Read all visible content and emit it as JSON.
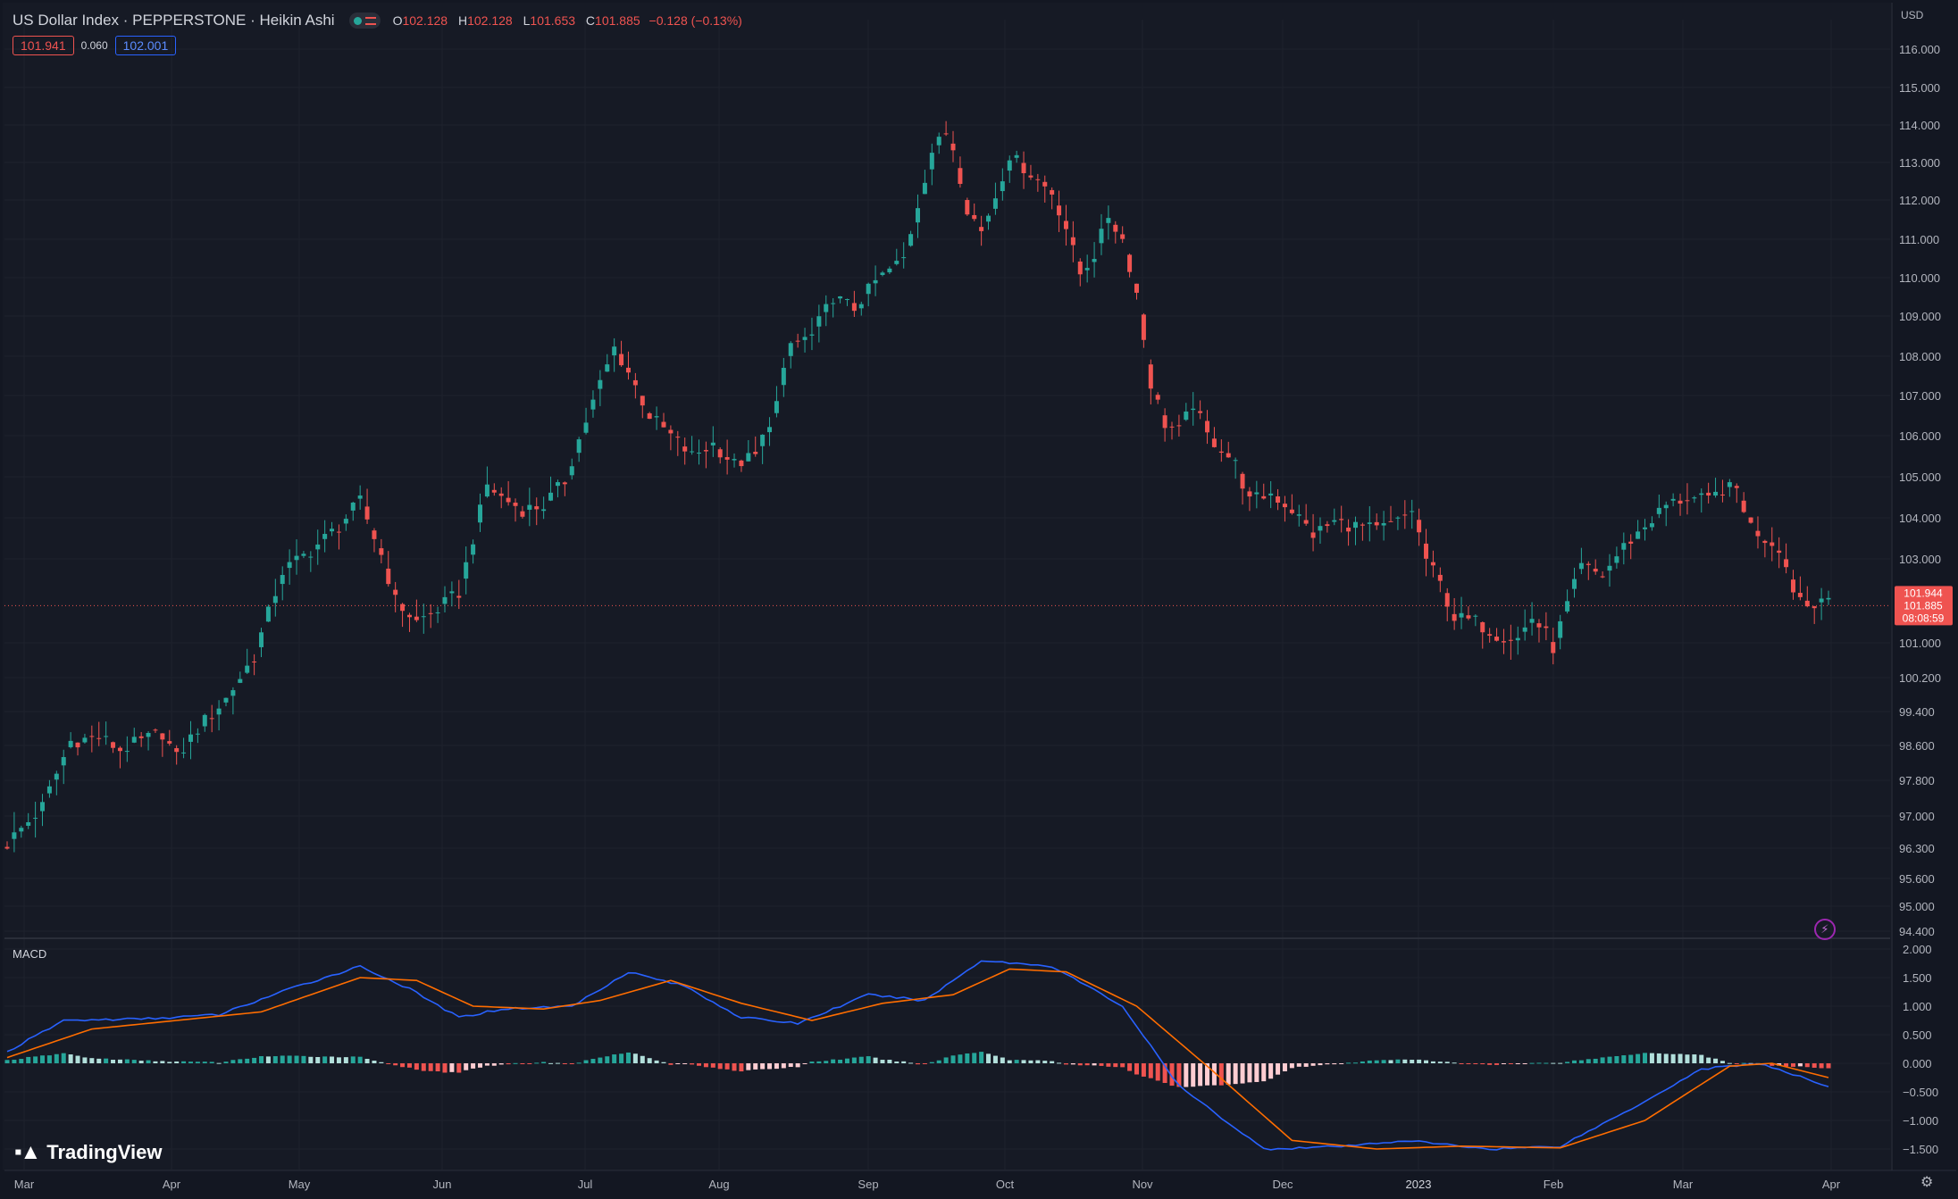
{
  "header": {
    "title": "US Dollar Index · PEPPERSTONE · Heikin Ashi",
    "ohlc": [
      {
        "k": "O",
        "v": "102.128"
      },
      {
        "k": "H",
        "v": "102.128"
      },
      {
        "k": "L",
        "v": "101.653"
      },
      {
        "k": "C",
        "v": "101.885"
      }
    ],
    "change": "−0.128 (−0.13%)",
    "bid": "101.941",
    "spread": "0.060",
    "ask": "102.001"
  },
  "currency": "USD",
  "macd_label": "MACD",
  "brand": "TradingView",
  "last_price_labels": [
    "101.944",
    "101.885",
    "08:08:59"
  ],
  "colors": {
    "background": "#131722",
    "up": "#26a69a",
    "down": "#ef5350",
    "macd_line": "#2962ff",
    "signal_line": "#ff6d00",
    "text": "#b2b5be"
  },
  "chart_data": [
    {
      "type": "candlestick",
      "style": "heikin-ashi",
      "ylim": [
        94.0,
        116.5
      ],
      "y_ticks": [
        "116.000",
        "115.000",
        "114.000",
        "113.000",
        "112.000",
        "111.000",
        "110.000",
        "109.000",
        "108.000",
        "107.000",
        "106.000",
        "105.000",
        "104.000",
        "103.000",
        "101.000",
        "100.200",
        "99.400",
        "98.600",
        "97.800",
        "97.000",
        "96.300",
        "95.600",
        "95.000",
        "94.400"
      ],
      "y_tick_values": [
        116,
        115,
        114,
        113,
        112,
        111,
        110,
        109,
        108,
        107,
        106,
        105,
        104,
        103,
        101,
        100.2,
        99.4,
        98.6,
        97.8,
        97,
        96.3,
        95.6,
        95,
        94.4
      ],
      "x_ticks": [
        "Mar",
        "Apr",
        "May",
        "Jun",
        "Jul",
        "Aug",
        "Sep",
        "Oct",
        "Nov",
        "Dec",
        "2023",
        "Feb",
        "Mar",
        "Apr"
      ],
      "last_price": 101.885,
      "close_path": [
        [
          0,
          96.4
        ],
        [
          5,
          97.2
        ],
        [
          9,
          98.7
        ],
        [
          13,
          98.8
        ],
        [
          16,
          98.5
        ],
        [
          19,
          98.7
        ],
        [
          22,
          98.9
        ],
        [
          24,
          98.3
        ],
        [
          27,
          99.0
        ],
        [
          31,
          99.7
        ],
        [
          35,
          100.7
        ],
        [
          39,
          102.7
        ],
        [
          43,
          103.2
        ],
        [
          47,
          103.8
        ],
        [
          50,
          104.4
        ],
        [
          53,
          103.1
        ],
        [
          55,
          102.0
        ],
        [
          58,
          101.5
        ],
        [
          61,
          101.8
        ],
        [
          64,
          102.2
        ],
        [
          66,
          103.5
        ],
        [
          68,
          104.8
        ],
        [
          70,
          104.5
        ],
        [
          73,
          104.2
        ],
        [
          76,
          104.3
        ],
        [
          79,
          104.9
        ],
        [
          81,
          105.9
        ],
        [
          84,
          107.3
        ],
        [
          86,
          108.2
        ],
        [
          88,
          107.6
        ],
        [
          91,
          106.5
        ],
        [
          94,
          106.0
        ],
        [
          97,
          105.5
        ],
        [
          100,
          105.8
        ],
        [
          103,
          105.3
        ],
        [
          106,
          105.5
        ],
        [
          109,
          106.8
        ],
        [
          111,
          108.3
        ],
        [
          114,
          108.5
        ],
        [
          117,
          109.5
        ],
        [
          120,
          109.2
        ],
        [
          123,
          109.9
        ],
        [
          127,
          110.5
        ],
        [
          131,
          113.3
        ],
        [
          133,
          113.8
        ],
        [
          134,
          113.4
        ],
        [
          136,
          111.8
        ],
        [
          138,
          111.2
        ],
        [
          140,
          112.1
        ],
        [
          142,
          113.2
        ],
        [
          145,
          112.7
        ],
        [
          148,
          112.2
        ],
        [
          150,
          111.3
        ],
        [
          152,
          110.1
        ],
        [
          154,
          110.6
        ],
        [
          156,
          111.6
        ],
        [
          158,
          111.0
        ],
        [
          160,
          109.6
        ],
        [
          162,
          107.3
        ],
        [
          164,
          106.3
        ],
        [
          166,
          106.1
        ],
        [
          168,
          106.8
        ],
        [
          170,
          106.0
        ],
        [
          172,
          105.7
        ],
        [
          174,
          105.3
        ],
        [
          176,
          104.4
        ],
        [
          179,
          104.6
        ],
        [
          182,
          104.2
        ],
        [
          185,
          103.6
        ],
        [
          188,
          103.9
        ],
        [
          191,
          103.8
        ],
        [
          194,
          103.7
        ],
        [
          197,
          103.9
        ],
        [
          199,
          104.2
        ],
        [
          201,
          103.0
        ],
        [
          203,
          102.4
        ],
        [
          205,
          101.6
        ],
        [
          208,
          101.5
        ],
        [
          211,
          101.2
        ],
        [
          214,
          101.1
        ],
        [
          216,
          101.6
        ],
        [
          218,
          101.2
        ],
        [
          219,
          100.9
        ],
        [
          221,
          101.9
        ],
        [
          223,
          102.8
        ],
        [
          226,
          102.6
        ],
        [
          229,
          103.3
        ],
        [
          232,
          103.8
        ],
        [
          235,
          104.3
        ],
        [
          238,
          104.5
        ],
        [
          241,
          104.4
        ],
        [
          243,
          104.7
        ],
        [
          245,
          104.7
        ],
        [
          247,
          103.8
        ],
        [
          249,
          103.5
        ],
        [
          251,
          103.3
        ],
        [
          253,
          102.3
        ],
        [
          255,
          101.9
        ],
        [
          257,
          102.1
        ],
        [
          258,
          101.9
        ]
      ],
      "n_candles": 259
    },
    {
      "type": "macd",
      "ylim": [
        -1.75,
        2.1
      ],
      "y_ticks": [
        "2.000",
        "1.500",
        "1.000",
        "0.500",
        "0.000",
        "−0.500",
        "−1.000",
        "−1.500"
      ],
      "y_tick_values": [
        2,
        1.5,
        1,
        0.5,
        0,
        -0.5,
        -1,
        -1.5
      ],
      "macd_path": [
        [
          0,
          0.2
        ],
        [
          8,
          0.75
        ],
        [
          20,
          0.78
        ],
        [
          30,
          0.85
        ],
        [
          40,
          1.3
        ],
        [
          50,
          1.7
        ],
        [
          57,
          1.3
        ],
        [
          64,
          0.8
        ],
        [
          70,
          0.95
        ],
        [
          80,
          1.0
        ],
        [
          88,
          1.6
        ],
        [
          96,
          1.35
        ],
        [
          104,
          0.8
        ],
        [
          112,
          0.7
        ],
        [
          122,
          1.2
        ],
        [
          130,
          1.1
        ],
        [
          138,
          1.8
        ],
        [
          148,
          1.7
        ],
        [
          158,
          1.0
        ],
        [
          166,
          -0.4
        ],
        [
          178,
          -1.5
        ],
        [
          190,
          -1.45
        ],
        [
          198,
          -1.35
        ],
        [
          210,
          -1.5
        ],
        [
          220,
          -1.45
        ],
        [
          230,
          -0.8
        ],
        [
          240,
          -0.1
        ],
        [
          248,
          0.0
        ],
        [
          258,
          -0.4
        ]
      ],
      "signal_path": [
        [
          0,
          0.1
        ],
        [
          12,
          0.6
        ],
        [
          24,
          0.75
        ],
        [
          36,
          0.9
        ],
        [
          50,
          1.5
        ],
        [
          58,
          1.45
        ],
        [
          66,
          1.0
        ],
        [
          76,
          0.95
        ],
        [
          84,
          1.1
        ],
        [
          94,
          1.45
        ],
        [
          104,
          1.05
        ],
        [
          114,
          0.75
        ],
        [
          124,
          1.05
        ],
        [
          134,
          1.2
        ],
        [
          142,
          1.65
        ],
        [
          150,
          1.6
        ],
        [
          160,
          1.0
        ],
        [
          170,
          -0.05
        ],
        [
          182,
          -1.35
        ],
        [
          194,
          -1.5
        ],
        [
          206,
          -1.45
        ],
        [
          220,
          -1.48
        ],
        [
          232,
          -1.0
        ],
        [
          244,
          -0.05
        ],
        [
          250,
          0.0
        ],
        [
          258,
          -0.25
        ]
      ]
    }
  ]
}
